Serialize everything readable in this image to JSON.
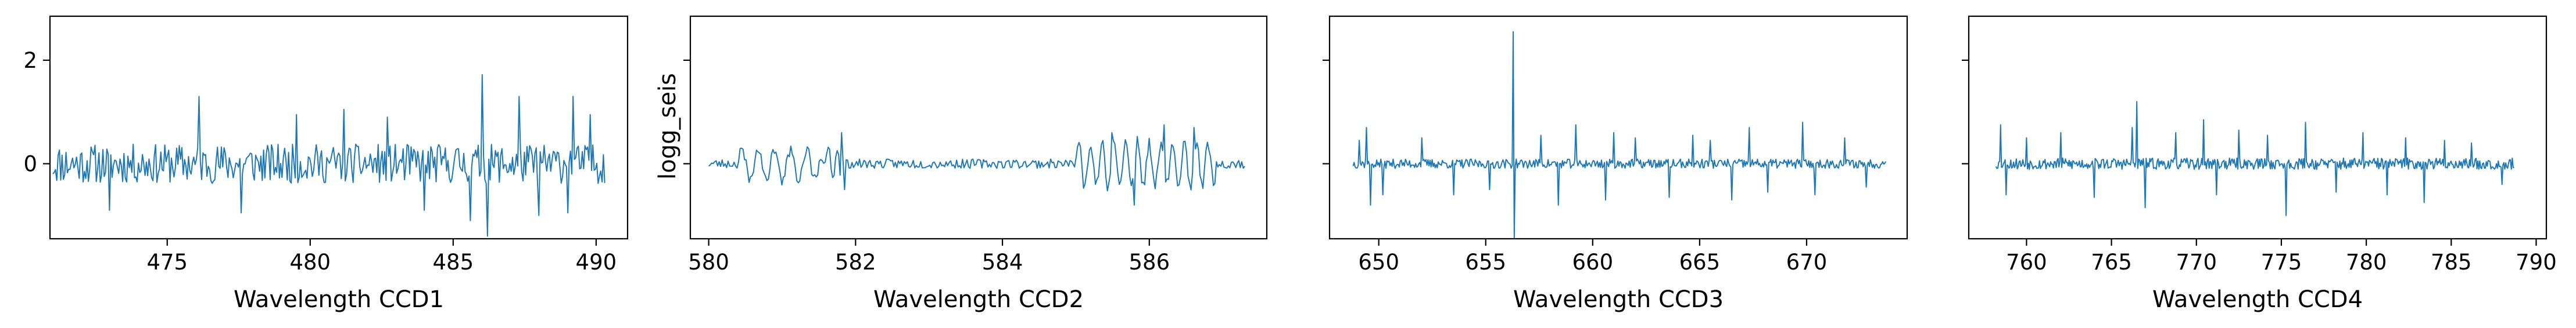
{
  "colors": {
    "line": "#1f77b4"
  },
  "shared_y": {
    "ylim": [
      -1.45,
      2.85
    ],
    "ticks": [
      0,
      2
    ],
    "tick_labels": [
      "0",
      "2"
    ]
  },
  "ylabel": "logg_seis",
  "chart_data": [
    {
      "type": "line",
      "xlabel": "Wavelength CCD1",
      "xlim": [
        470.9,
        491.1
      ],
      "xrange": [
        471.0,
        490.3
      ],
      "xticks": [
        475,
        480,
        485,
        490
      ],
      "xtick_labels": [
        "475",
        "480",
        "485",
        "490"
      ],
      "samples": 420,
      "seed": 11,
      "base_amp": 0.38,
      "spikes": [
        [
          476.1,
          1.3
        ],
        [
          477.6,
          -0.95
        ],
        [
          481.2,
          1.05
        ],
        [
          484.0,
          -0.9
        ],
        [
          485.6,
          -1.1
        ],
        [
          486.0,
          1.72
        ],
        [
          486.2,
          -1.4
        ],
        [
          487.3,
          1.3
        ],
        [
          488.0,
          -1.0
        ],
        [
          489.0,
          -0.95
        ],
        [
          489.2,
          1.3
        ],
        [
          489.8,
          0.95
        ],
        [
          473.0,
          -0.9
        ],
        [
          479.5,
          0.95
        ],
        [
          482.7,
          0.9
        ]
      ]
    },
    {
      "type": "line",
      "xlabel": "Wavelength CCD2",
      "xlim": [
        579.75,
        587.6
      ],
      "xrange": [
        580.0,
        587.3
      ],
      "xticks": [
        580,
        582,
        584,
        586
      ],
      "xtick_labels": [
        "580",
        "582",
        "584",
        "586"
      ],
      "samples": 360,
      "seed": 23,
      "base_amp": 0.09,
      "waves": [
        [
          580.4,
          581.5,
          0.35,
          0.22
        ],
        [
          581.6,
          581.8,
          0.45,
          0.12
        ],
        [
          585.0,
          586.9,
          0.55,
          0.16
        ]
      ],
      "spikes": [
        [
          581.8,
          0.6
        ],
        [
          581.85,
          -0.5
        ],
        [
          585.8,
          -0.8
        ],
        [
          586.2,
          0.75
        ],
        [
          586.6,
          0.7
        ],
        [
          585.5,
          0.6
        ]
      ]
    },
    {
      "type": "line",
      "xlabel": "Wavelength CCD3",
      "xlim": [
        647.7,
        674.7
      ],
      "xrange": [
        648.8,
        673.7
      ],
      "xticks": [
        650,
        655,
        660,
        665,
        670
      ],
      "xtick_labels": [
        "650",
        "655",
        "660",
        "665",
        "670"
      ],
      "samples": 520,
      "seed": 37,
      "base_amp": 0.09,
      "spikes": [
        [
          649.4,
          0.7
        ],
        [
          649.6,
          -0.8
        ],
        [
          650.2,
          -0.6
        ],
        [
          652.0,
          0.5
        ],
        [
          653.5,
          -0.6
        ],
        [
          656.3,
          2.55
        ],
        [
          656.35,
          -1.45
        ],
        [
          657.6,
          0.55
        ],
        [
          658.4,
          -0.8
        ],
        [
          659.2,
          0.75
        ],
        [
          660.6,
          -0.7
        ],
        [
          661.0,
          0.6
        ],
        [
          662.0,
          0.5
        ],
        [
          663.6,
          -0.65
        ],
        [
          664.7,
          0.55
        ],
        [
          666.5,
          -0.7
        ],
        [
          667.3,
          0.7
        ],
        [
          668.2,
          -0.55
        ],
        [
          669.8,
          0.8
        ],
        [
          670.4,
          -0.6
        ],
        [
          671.8,
          0.5
        ],
        [
          672.8,
          -0.45
        ],
        [
          649.1,
          0.45
        ],
        [
          655.2,
          -0.5
        ],
        [
          665.5,
          0.45
        ]
      ]
    },
    {
      "type": "line",
      "xlabel": "Wavelength CCD4",
      "xlim": [
        756.6,
        790.6
      ],
      "xrange": [
        758.2,
        788.7
      ],
      "xticks": [
        760,
        765,
        770,
        775,
        780,
        785,
        790
      ],
      "xtick_labels": [
        "760",
        "765",
        "770",
        "775",
        "780",
        "785",
        "790"
      ],
      "samples": 560,
      "seed": 53,
      "base_amp": 0.11,
      "spikes": [
        [
          758.5,
          0.75
        ],
        [
          758.8,
          -0.6
        ],
        [
          760.0,
          0.5
        ],
        [
          762.0,
          0.6
        ],
        [
          764.0,
          -0.65
        ],
        [
          766.2,
          0.7
        ],
        [
          766.5,
          1.2
        ],
        [
          767.0,
          -0.85
        ],
        [
          768.8,
          0.6
        ],
        [
          770.4,
          0.85
        ],
        [
          771.2,
          -0.6
        ],
        [
          772.5,
          0.65
        ],
        [
          774.2,
          0.55
        ],
        [
          775.3,
          -1.0
        ],
        [
          776.4,
          0.8
        ],
        [
          778.2,
          -0.55
        ],
        [
          779.8,
          0.6
        ],
        [
          781.2,
          -0.6
        ],
        [
          782.3,
          0.5
        ],
        [
          783.4,
          -0.75
        ],
        [
          784.6,
          0.45
        ],
        [
          786.2,
          0.4
        ],
        [
          788.0,
          -0.4
        ]
      ]
    }
  ]
}
